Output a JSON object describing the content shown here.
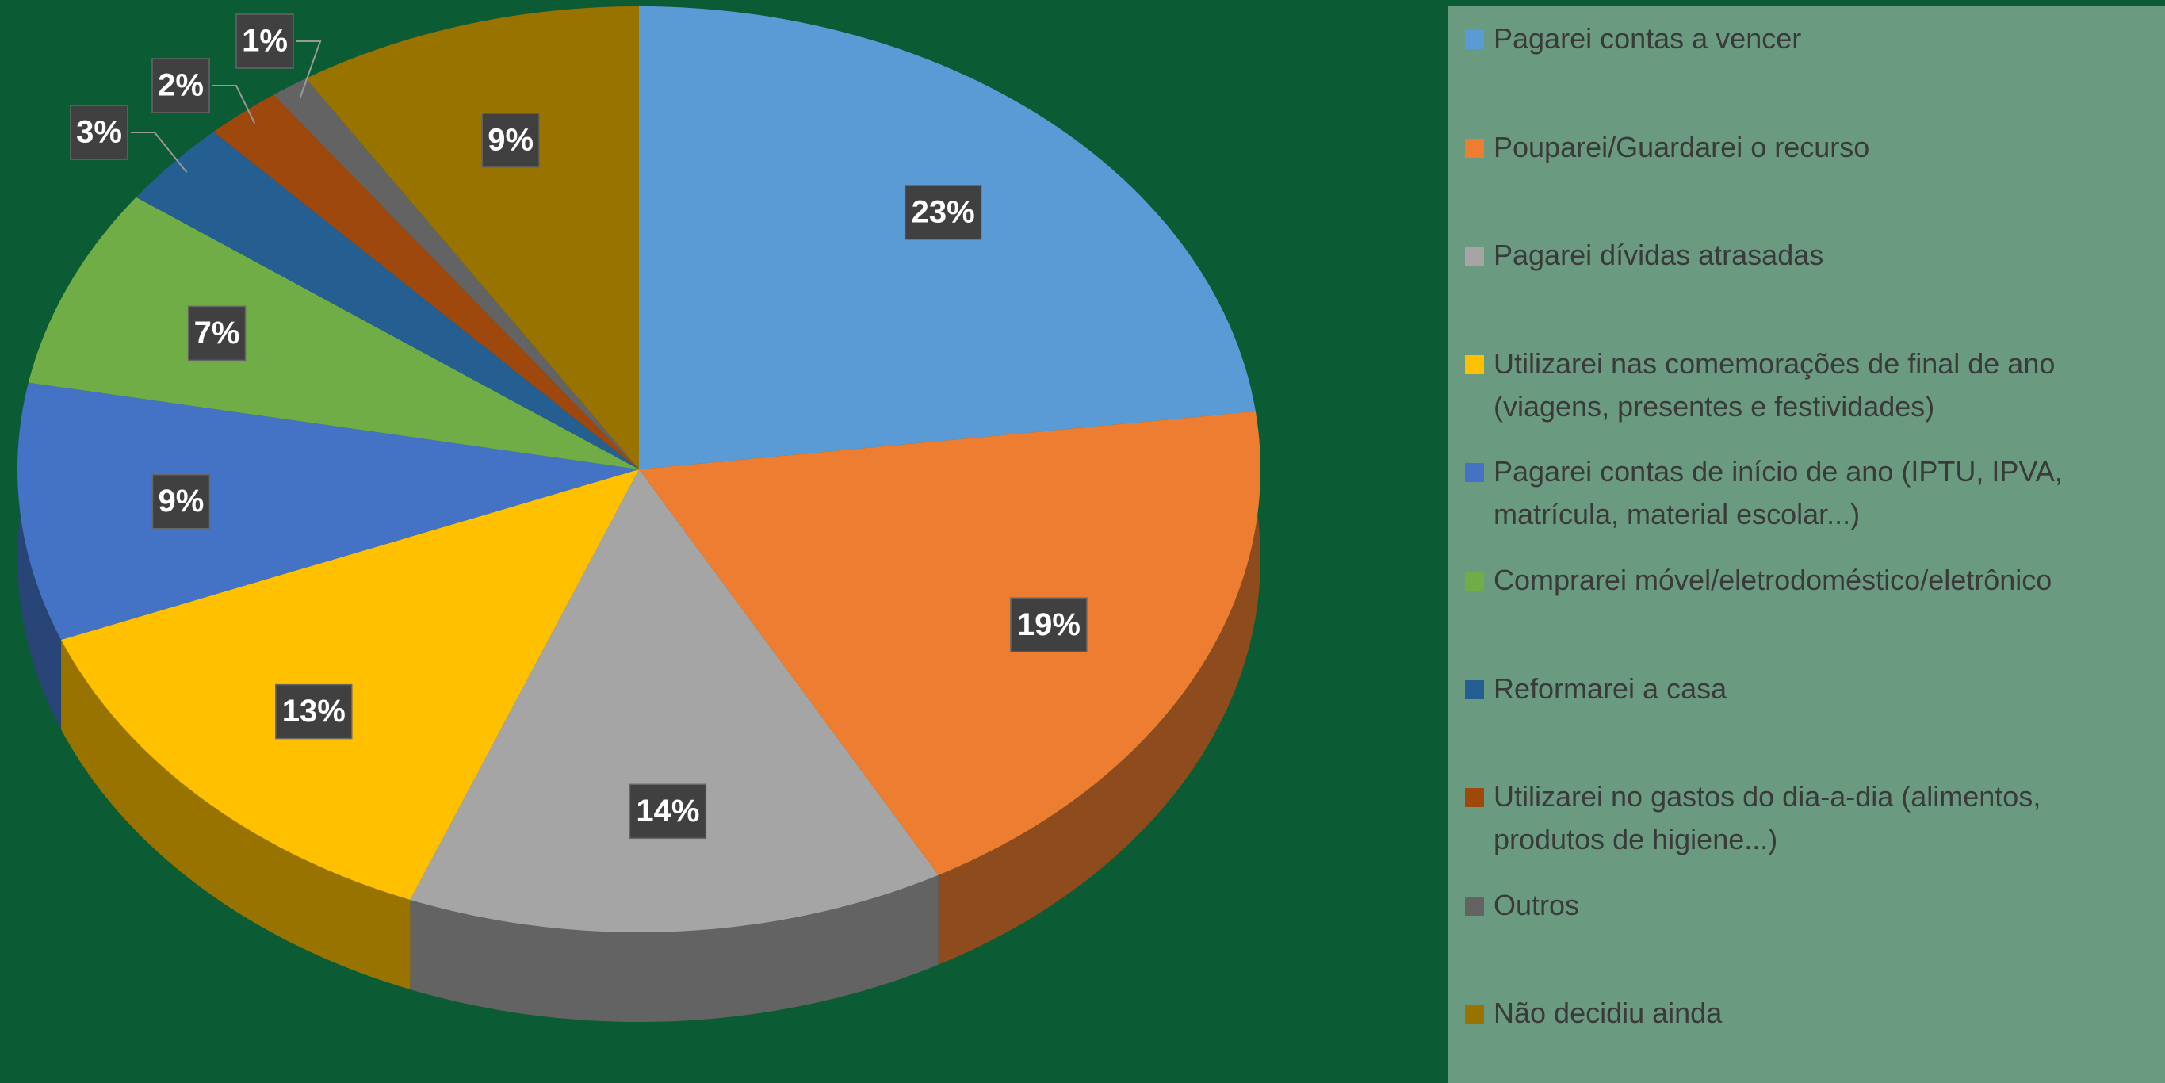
{
  "chart_data": {
    "type": "pie3d",
    "categories": [
      "Pagarei contas a vencer",
      "Pouparei/Guardarei o recurso",
      "Pagarei dívidas atrasadas",
      "Utilizarei nas comemorações de final de ano (viagens, presentes e festividades)",
      "Pagarei contas de início de ano (IPTU, IPVA, matrícula, material escolar...)",
      "Comprarei móvel/eletrodoméstico/eletrônico",
      "Reformarei a casa",
      "Utilizarei no gastos do dia-a-dia (alimentos, produtos de higiene...)",
      "Outros",
      "Não decidiu ainda"
    ],
    "values": [
      23,
      19,
      14,
      13,
      9,
      7,
      3,
      2,
      1,
      9
    ],
    "value_labels": [
      "23%",
      "19%",
      "14%",
      "13%",
      "9%",
      "7%",
      "3%",
      "2%",
      "1%",
      "9%"
    ],
    "colors": [
      "#5b9bd5",
      "#ed7d31",
      "#a5a5a5",
      "#ffc000",
      "#4472c4",
      "#70ad47",
      "#255e91",
      "#9e480e",
      "#636363",
      "#997300"
    ],
    "legend": "right"
  }
}
